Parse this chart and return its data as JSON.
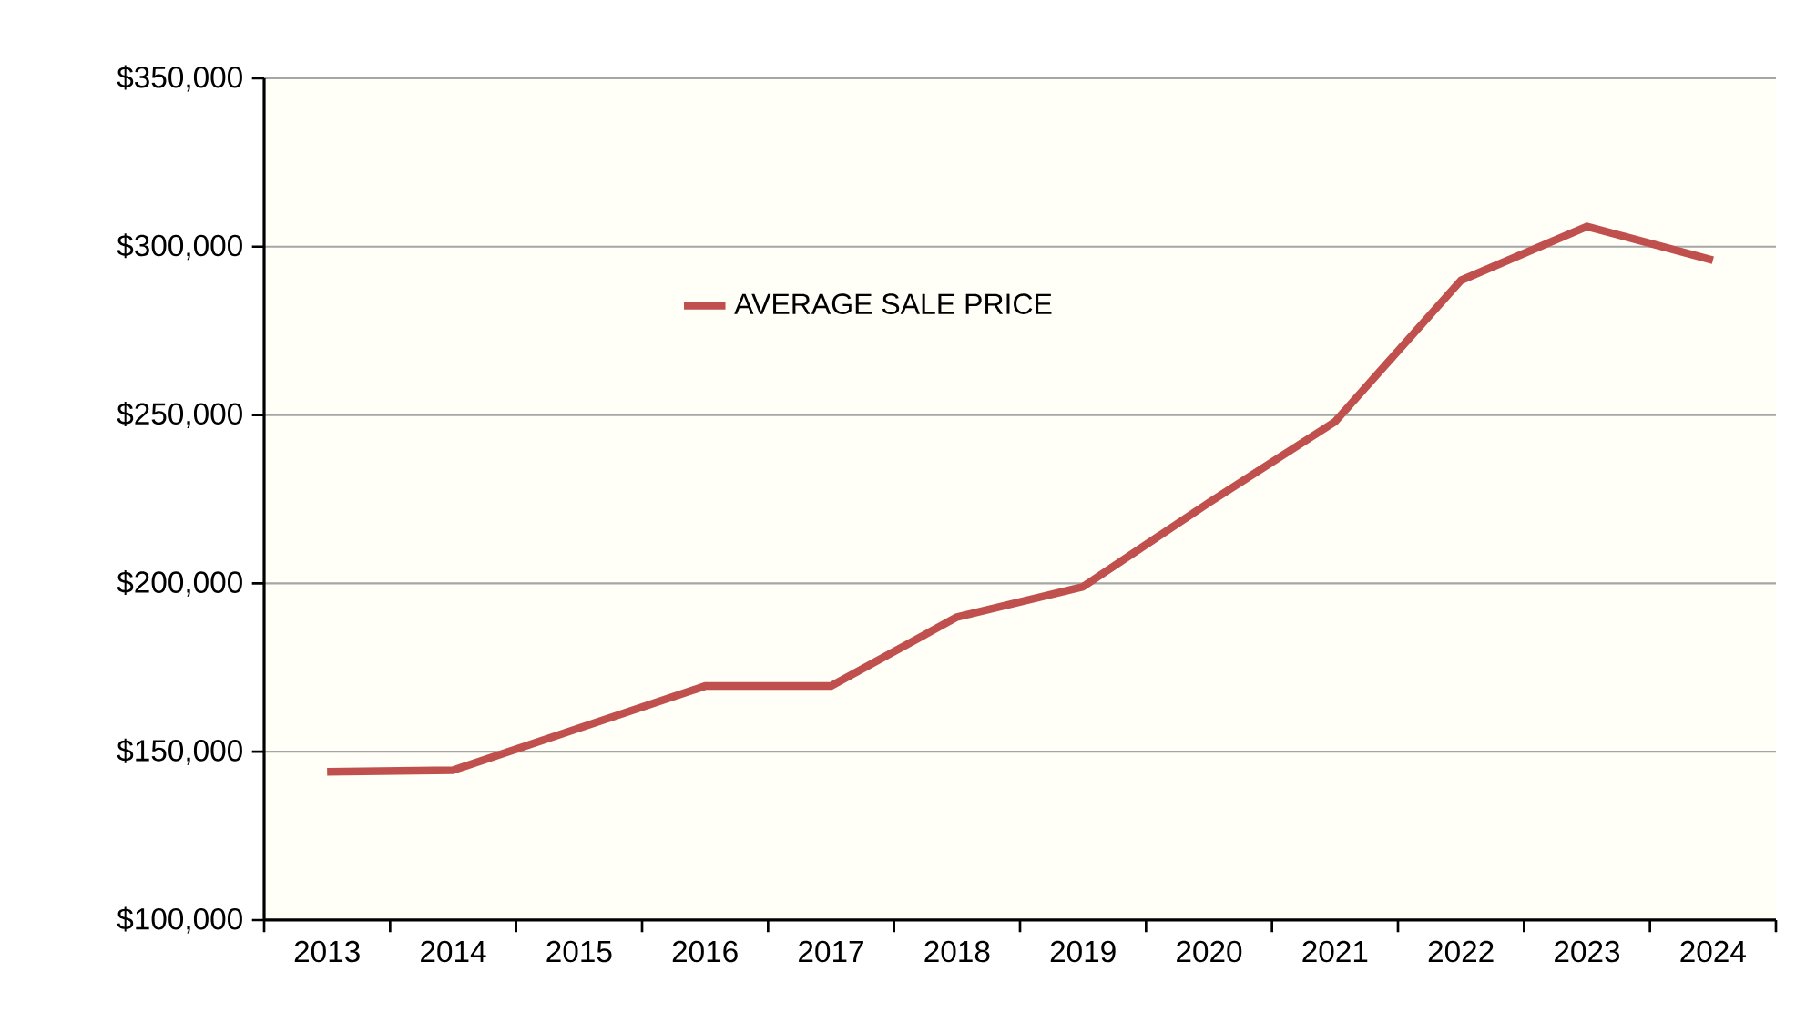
{
  "chart_data": {
    "type": "line",
    "categories": [
      "2013",
      "2014",
      "2015",
      "2016",
      "2017",
      "2018",
      "2019",
      "2020",
      "2021",
      "2022",
      "2023",
      "2024"
    ],
    "series": [
      {
        "name": "AVERAGE SALE PRICE",
        "color": "#c0504d",
        "values": [
          144000,
          144500,
          157000,
          169500,
          169500,
          190000,
          199000,
          224000,
          248000,
          290000,
          306000,
          296000
        ]
      }
    ],
    "ylim": [
      100000,
      350000
    ],
    "yticks": [
      {
        "value": 100000,
        "label": "$100,000"
      },
      {
        "value": 150000,
        "label": "$150,000"
      },
      {
        "value": 200000,
        "label": "$200,000"
      },
      {
        "value": 250000,
        "label": "$250,000"
      },
      {
        "value": 300000,
        "label": "$300,000"
      },
      {
        "value": 350000,
        "label": "$350,000"
      }
    ],
    "grid": "y",
    "legend": "top"
  }
}
